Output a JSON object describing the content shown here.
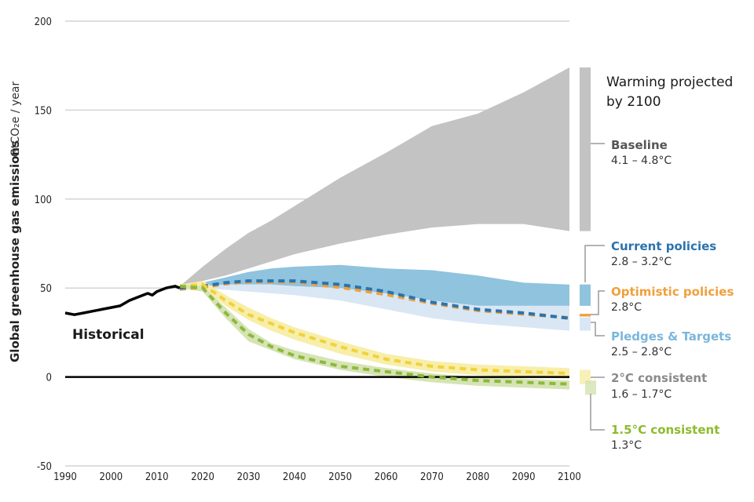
{
  "chart_data": {
    "type": "area",
    "title": "",
    "xlabel": "",
    "ylabel": "Global greenhouse gas emissions",
    "ylabel_unit": "GtCO₂e / year",
    "xlim": [
      1990,
      2100
    ],
    "ylim": [
      -50,
      200
    ],
    "x_ticks": [
      "1990",
      "2000",
      "2010",
      "2020",
      "2030",
      "2040",
      "2050",
      "2060",
      "2070",
      "2080",
      "2090",
      "2100"
    ],
    "y_ticks": [
      "200",
      "150",
      "100",
      "50",
      "0",
      "-50"
    ],
    "grid": "horizontal",
    "historical": {
      "label": "Historical",
      "color": "#000000",
      "x": [
        1990,
        1992,
        1994,
        1996,
        1998,
        2000,
        2002,
        2004,
        2006,
        2008,
        2009,
        2010,
        2012,
        2014,
        2015
      ],
      "y": [
        36,
        35,
        36,
        37,
        38,
        39,
        40,
        43,
        45,
        47,
        46,
        48,
        50,
        51,
        50
      ]
    },
    "bands": [
      {
        "name": "Baseline",
        "color": "#c3c3c4",
        "x": [
          2015,
          2020,
          2025,
          2030,
          2035,
          2040,
          2050,
          2060,
          2070,
          2080,
          2090,
          2100
        ],
        "upper": [
          51,
          62,
          72,
          81,
          88,
          96,
          112,
          126,
          141,
          148,
          160,
          174
        ],
        "lower": [
          51,
          54,
          57,
          61,
          65,
          69,
          75,
          80,
          84,
          86,
          86,
          82
        ]
      },
      {
        "name": "Current policies",
        "color": "#8fc3de",
        "x": [
          2015,
          2020,
          2025,
          2030,
          2035,
          2040,
          2050,
          2060,
          2070,
          2080,
          2090,
          2100
        ],
        "upper": [
          51,
          53,
          56,
          59,
          61,
          62,
          63,
          61,
          60,
          57,
          53,
          52
        ],
        "lower": [
          51,
          51,
          52,
          52,
          52,
          51,
          50,
          47,
          43,
          40,
          40,
          40
        ]
      },
      {
        "name": "Pledges & Targets",
        "color": "#d9e7f4",
        "x": [
          2015,
          2020,
          2025,
          2030,
          2035,
          2040,
          2050,
          2060,
          2070,
          2080,
          2090,
          2100
        ],
        "upper": [
          51,
          51,
          52,
          52,
          52,
          51,
          50,
          47,
          43,
          40,
          40,
          40
        ],
        "lower": [
          51,
          50,
          49,
          48,
          47,
          46,
          43,
          38,
          33,
          30,
          28,
          26
        ]
      },
      {
        "name": "2°C consistent",
        "color": "#f7eeaa",
        "x": [
          2015,
          2020,
          2025,
          2030,
          2035,
          2040,
          2050,
          2060,
          2070,
          2080,
          2090,
          2100
        ],
        "upper": [
          52,
          54,
          46,
          39,
          33,
          28,
          20,
          13,
          9,
          7,
          6,
          5
        ],
        "lower": [
          50,
          50,
          40,
          32,
          26,
          21,
          13,
          7,
          3,
          1,
          0,
          -1
        ]
      },
      {
        "name": "1.5°C consistent",
        "color": "#d6e4b5",
        "x": [
          2015,
          2020,
          2025,
          2030,
          2035,
          2040,
          2050,
          2060,
          2070,
          2080,
          2090,
          2100
        ],
        "upper": [
          52,
          51,
          39,
          27,
          19,
          15,
          9,
          5,
          2,
          0,
          -1,
          -2
        ],
        "lower": [
          50,
          48,
          33,
          20,
          15,
          10,
          4,
          0,
          -3,
          -5,
          -6,
          -7
        ]
      }
    ],
    "dashed_lines": [
      {
        "name": "Current policies median",
        "color": "#2a73ae",
        "x": [
          2015,
          2020,
          2025,
          2030,
          2035,
          2040,
          2050,
          2060,
          2070,
          2080,
          2090,
          2100
        ],
        "y": [
          50,
          51,
          53,
          54,
          54,
          54,
          52,
          48,
          42,
          38,
          36,
          33
        ]
      },
      {
        "name": "Optimistic policies",
        "color": "#f0a03c",
        "x": [
          2015,
          2020,
          2025,
          2030,
          2035,
          2040,
          2050,
          2060,
          2070,
          2080,
          2090,
          2100
        ],
        "y": [
          50,
          51,
          53,
          54,
          54,
          54,
          51,
          47,
          42,
          38,
          36,
          34
        ]
      },
      {
        "name": "2°C consistent median",
        "color": "#f1d23a",
        "x": [
          2015,
          2020,
          2025,
          2030,
          2035,
          2040,
          2050,
          2060,
          2070,
          2080,
          2090,
          2100
        ],
        "y": [
          51,
          52,
          43,
          35,
          30,
          25,
          17,
          10,
          6,
          4,
          3,
          2
        ]
      },
      {
        "name": "1.5°C consistent median",
        "color": "#8db83c",
        "x": [
          2015,
          2020,
          2025,
          2030,
          2035,
          2040,
          2050,
          2060,
          2070,
          2080,
          2090,
          2100
        ],
        "y": [
          51,
          50,
          36,
          24,
          17,
          12,
          6,
          3,
          0,
          -2,
          -3,
          -4
        ]
      }
    ],
    "zero_line": 0,
    "right_bars": [
      {
        "name": "Baseline",
        "color": "#c3c3c4",
        "range": [
          82,
          174
        ]
      },
      {
        "name": "Current policies",
        "color": "#8fc3de",
        "range": [
          40,
          52
        ]
      },
      {
        "name": "Optimistic policies",
        "color": "#f0a03c",
        "range": [
          34,
          35.5
        ]
      },
      {
        "name": "Pledges & Targets",
        "color": "#d9e7f4",
        "range": [
          26,
          33.5
        ]
      },
      {
        "name": "2°C consistent",
        "color": "#f7eeaa",
        "range": [
          -4,
          4
        ]
      },
      {
        "name": "1.5°C consistent",
        "color": "#d6e4b5",
        "range": [
          -10,
          -2
        ]
      }
    ],
    "legend": {
      "heading_line1": "Warming projected",
      "heading_line2": "by 2100",
      "placement": "right",
      "entries": [
        {
          "title": "Baseline",
          "value": "4.1 – 4.8°C",
          "color": "#555555"
        },
        {
          "title": "Current policies",
          "value": "2.8 – 3.2°C",
          "color": "#2a73ae"
        },
        {
          "title": "Optimistic policies",
          "value": "2.8°C",
          "color": "#f0a03c"
        },
        {
          "title": "Pledges & Targets",
          "value": "2.5 – 2.8°C",
          "color": "#7bb6dc"
        },
        {
          "title": "2°C consistent",
          "value": "1.6 – 1.7°C",
          "color": "#8a8a8a"
        },
        {
          "title": "1.5°C consistent",
          "value": "1.3°C",
          "color": "#8dbb2c"
        }
      ]
    }
  }
}
